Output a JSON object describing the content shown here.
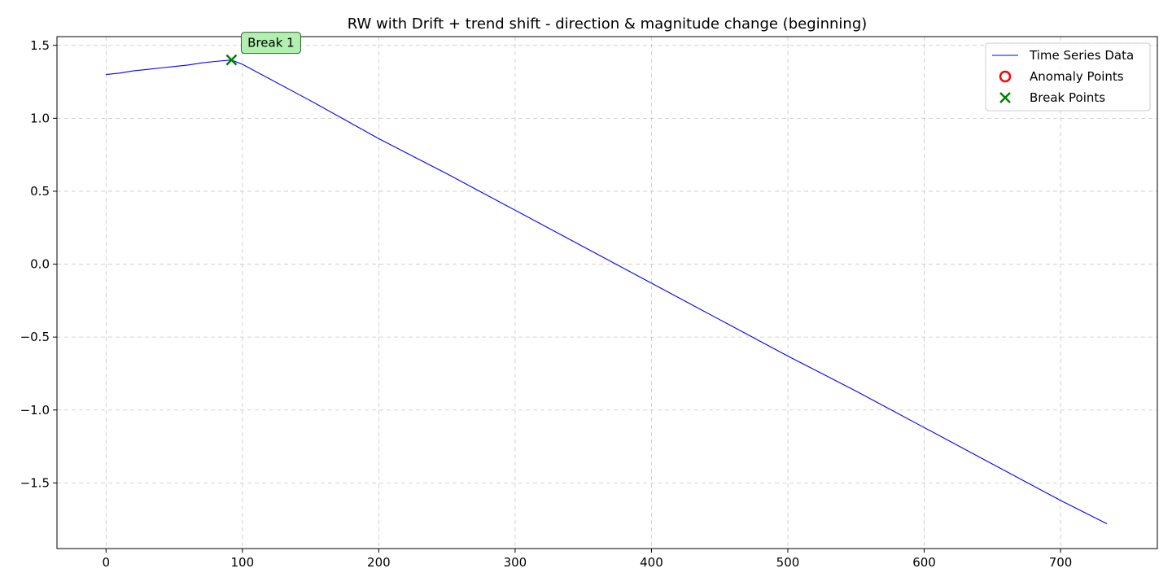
{
  "chart_data": {
    "type": "line",
    "title": "RW with Drift + trend shift - direction & magnitude change (beginning)",
    "xlabel": "",
    "ylabel": "",
    "xlim": [
      -36,
      771
    ],
    "ylim": [
      -1.95,
      1.56
    ],
    "x_ticks": [
      0,
      100,
      200,
      300,
      400,
      500,
      600,
      700
    ],
    "x_tick_labels": [
      "0",
      "100",
      "200",
      "300",
      "400",
      "500",
      "600",
      "700"
    ],
    "y_ticks": [
      1.5,
      1.0,
      0.5,
      0.0,
      -0.5,
      -1.0,
      -1.5
    ],
    "y_tick_labels": [
      "1.5",
      "1.0",
      "0.5",
      "0.0",
      "−0.5",
      "−1.0",
      "−1.5"
    ],
    "grid": true,
    "legend_position": "top-right",
    "series": [
      {
        "name": "Time Series Data",
        "kind": "line",
        "color": "#0000ff",
        "x": [
          0,
          10,
          20,
          30,
          40,
          50,
          60,
          70,
          80,
          92,
          100,
          150,
          200,
          250,
          300,
          350,
          400,
          450,
          500,
          550,
          600,
          650,
          700,
          734
        ],
        "y": [
          1.3,
          1.31,
          1.325,
          1.335,
          1.345,
          1.355,
          1.365,
          1.38,
          1.39,
          1.4,
          1.37,
          1.12,
          0.86,
          0.62,
          0.37,
          0.12,
          -0.13,
          -0.38,
          -0.63,
          -0.87,
          -1.12,
          -1.37,
          -1.62,
          -1.78
        ]
      },
      {
        "name": "Anomaly Points",
        "kind": "scatter",
        "marker": "circle",
        "color": "#ff0000",
        "x": [],
        "y": []
      },
      {
        "name": "Break Points",
        "kind": "scatter",
        "marker": "x",
        "color": "#008000",
        "x": [
          92
        ],
        "y": [
          1.4
        ]
      }
    ],
    "annotations": [
      {
        "text": "Break 1",
        "x": 92,
        "y": 1.4,
        "box_color": "#b2f0b2"
      }
    ]
  }
}
